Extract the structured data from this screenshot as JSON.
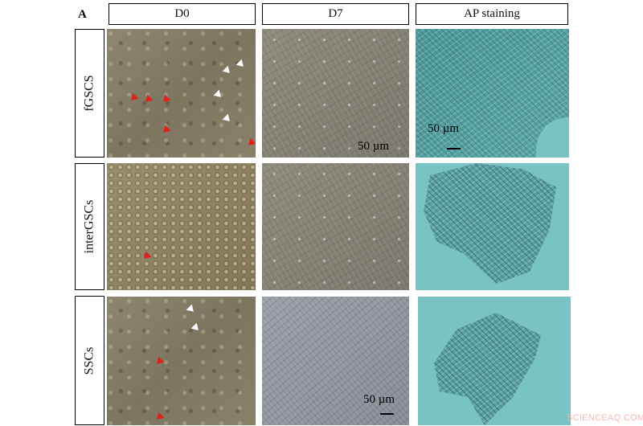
{
  "panel_label": "A",
  "columns": [
    {
      "label": "D0"
    },
    {
      "label": "D7"
    },
    {
      "label": "AP staining"
    }
  ],
  "rows": [
    {
      "label": "fGSCS"
    },
    {
      "label": "interGSCs"
    },
    {
      "label": "SSCs"
    }
  ],
  "scale_bars": {
    "fgscs_d7": "50 µm",
    "fgscs_ap": "50 µm",
    "sscs_d7": "50 µm"
  },
  "arrow_colors": {
    "red": "#e0201a",
    "white": "#ffffff"
  },
  "watermark": "SCIENCEAQ.COM"
}
